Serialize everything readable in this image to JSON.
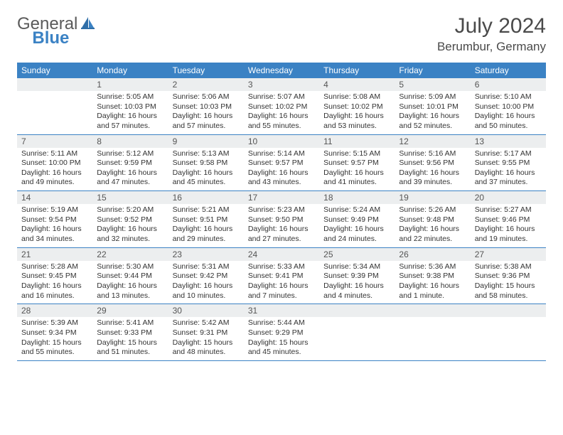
{
  "brand": {
    "general": "General",
    "blue": "Blue"
  },
  "colors": {
    "header_bg": "#3b82c4",
    "header_text": "#ffffff",
    "daynum_bg": "#eceeef",
    "border": "#3b82c4",
    "title_color": "#4a4a4a",
    "body_text": "#333333",
    "logo_gray": "#5a5a5a",
    "logo_blue": "#3b82c4"
  },
  "title": "July 2024",
  "location": "Berumbur, Germany",
  "day_names": [
    "Sunday",
    "Monday",
    "Tuesday",
    "Wednesday",
    "Thursday",
    "Friday",
    "Saturday"
  ],
  "weeks": [
    [
      null,
      {
        "n": "1",
        "sr": "Sunrise: 5:05 AM",
        "ss": "Sunset: 10:03 PM",
        "dl": "Daylight: 16 hours and 57 minutes."
      },
      {
        "n": "2",
        "sr": "Sunrise: 5:06 AM",
        "ss": "Sunset: 10:03 PM",
        "dl": "Daylight: 16 hours and 57 minutes."
      },
      {
        "n": "3",
        "sr": "Sunrise: 5:07 AM",
        "ss": "Sunset: 10:02 PM",
        "dl": "Daylight: 16 hours and 55 minutes."
      },
      {
        "n": "4",
        "sr": "Sunrise: 5:08 AM",
        "ss": "Sunset: 10:02 PM",
        "dl": "Daylight: 16 hours and 53 minutes."
      },
      {
        "n": "5",
        "sr": "Sunrise: 5:09 AM",
        "ss": "Sunset: 10:01 PM",
        "dl": "Daylight: 16 hours and 52 minutes."
      },
      {
        "n": "6",
        "sr": "Sunrise: 5:10 AM",
        "ss": "Sunset: 10:00 PM",
        "dl": "Daylight: 16 hours and 50 minutes."
      }
    ],
    [
      {
        "n": "7",
        "sr": "Sunrise: 5:11 AM",
        "ss": "Sunset: 10:00 PM",
        "dl": "Daylight: 16 hours and 49 minutes."
      },
      {
        "n": "8",
        "sr": "Sunrise: 5:12 AM",
        "ss": "Sunset: 9:59 PM",
        "dl": "Daylight: 16 hours and 47 minutes."
      },
      {
        "n": "9",
        "sr": "Sunrise: 5:13 AM",
        "ss": "Sunset: 9:58 PM",
        "dl": "Daylight: 16 hours and 45 minutes."
      },
      {
        "n": "10",
        "sr": "Sunrise: 5:14 AM",
        "ss": "Sunset: 9:57 PM",
        "dl": "Daylight: 16 hours and 43 minutes."
      },
      {
        "n": "11",
        "sr": "Sunrise: 5:15 AM",
        "ss": "Sunset: 9:57 PM",
        "dl": "Daylight: 16 hours and 41 minutes."
      },
      {
        "n": "12",
        "sr": "Sunrise: 5:16 AM",
        "ss": "Sunset: 9:56 PM",
        "dl": "Daylight: 16 hours and 39 minutes."
      },
      {
        "n": "13",
        "sr": "Sunrise: 5:17 AM",
        "ss": "Sunset: 9:55 PM",
        "dl": "Daylight: 16 hours and 37 minutes."
      }
    ],
    [
      {
        "n": "14",
        "sr": "Sunrise: 5:19 AM",
        "ss": "Sunset: 9:54 PM",
        "dl": "Daylight: 16 hours and 34 minutes."
      },
      {
        "n": "15",
        "sr": "Sunrise: 5:20 AM",
        "ss": "Sunset: 9:52 PM",
        "dl": "Daylight: 16 hours and 32 minutes."
      },
      {
        "n": "16",
        "sr": "Sunrise: 5:21 AM",
        "ss": "Sunset: 9:51 PM",
        "dl": "Daylight: 16 hours and 29 minutes."
      },
      {
        "n": "17",
        "sr": "Sunrise: 5:23 AM",
        "ss": "Sunset: 9:50 PM",
        "dl": "Daylight: 16 hours and 27 minutes."
      },
      {
        "n": "18",
        "sr": "Sunrise: 5:24 AM",
        "ss": "Sunset: 9:49 PM",
        "dl": "Daylight: 16 hours and 24 minutes."
      },
      {
        "n": "19",
        "sr": "Sunrise: 5:26 AM",
        "ss": "Sunset: 9:48 PM",
        "dl": "Daylight: 16 hours and 22 minutes."
      },
      {
        "n": "20",
        "sr": "Sunrise: 5:27 AM",
        "ss": "Sunset: 9:46 PM",
        "dl": "Daylight: 16 hours and 19 minutes."
      }
    ],
    [
      {
        "n": "21",
        "sr": "Sunrise: 5:28 AM",
        "ss": "Sunset: 9:45 PM",
        "dl": "Daylight: 16 hours and 16 minutes."
      },
      {
        "n": "22",
        "sr": "Sunrise: 5:30 AM",
        "ss": "Sunset: 9:44 PM",
        "dl": "Daylight: 16 hours and 13 minutes."
      },
      {
        "n": "23",
        "sr": "Sunrise: 5:31 AM",
        "ss": "Sunset: 9:42 PM",
        "dl": "Daylight: 16 hours and 10 minutes."
      },
      {
        "n": "24",
        "sr": "Sunrise: 5:33 AM",
        "ss": "Sunset: 9:41 PM",
        "dl": "Daylight: 16 hours and 7 minutes."
      },
      {
        "n": "25",
        "sr": "Sunrise: 5:34 AM",
        "ss": "Sunset: 9:39 PM",
        "dl": "Daylight: 16 hours and 4 minutes."
      },
      {
        "n": "26",
        "sr": "Sunrise: 5:36 AM",
        "ss": "Sunset: 9:38 PM",
        "dl": "Daylight: 16 hours and 1 minute."
      },
      {
        "n": "27",
        "sr": "Sunrise: 5:38 AM",
        "ss": "Sunset: 9:36 PM",
        "dl": "Daylight: 15 hours and 58 minutes."
      }
    ],
    [
      {
        "n": "28",
        "sr": "Sunrise: 5:39 AM",
        "ss": "Sunset: 9:34 PM",
        "dl": "Daylight: 15 hours and 55 minutes."
      },
      {
        "n": "29",
        "sr": "Sunrise: 5:41 AM",
        "ss": "Sunset: 9:33 PM",
        "dl": "Daylight: 15 hours and 51 minutes."
      },
      {
        "n": "30",
        "sr": "Sunrise: 5:42 AM",
        "ss": "Sunset: 9:31 PM",
        "dl": "Daylight: 15 hours and 48 minutes."
      },
      {
        "n": "31",
        "sr": "Sunrise: 5:44 AM",
        "ss": "Sunset: 9:29 PM",
        "dl": "Daylight: 15 hours and 45 minutes."
      },
      null,
      null,
      null
    ]
  ]
}
